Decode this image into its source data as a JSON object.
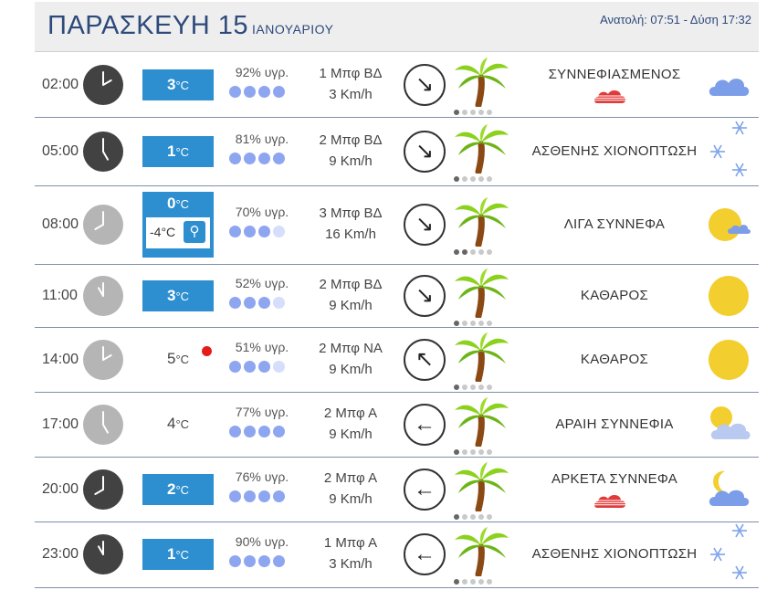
{
  "header": {
    "day_title": "ΠΑΡΑΣΚΕΥΗ 15",
    "month": "ΙΑΝΟΥΑΡΙΟΥ",
    "sun_times": "Ανατολή: 07:51  - Δύση 17:32"
  },
  "rows": [
    {
      "time": "02:00",
      "clock_style": "dark",
      "temp": "3",
      "temp_unit": "°C",
      "temp_style": "box",
      "humidity": "92% υγρ.",
      "humidity_level": 4,
      "wind_force": "1 Μπφ ΒΔ",
      "wind_speed": "3 Km/h",
      "wind_arrow": "↘",
      "palm_level": 1,
      "condition": "ΣΥΝΝΕΦΙΑΣΜΕΝΟΣ",
      "rain_icon": true,
      "weather_icon": "cloud-icon"
    },
    {
      "time": "05:00",
      "clock_style": "dark",
      "temp": "1",
      "temp_unit": "°C",
      "temp_style": "box",
      "humidity": "81% υγρ.",
      "humidity_level": 4,
      "wind_force": "2 Μπφ ΒΔ",
      "wind_speed": "9 Km/h",
      "wind_arrow": "↘",
      "palm_level": 1,
      "condition": "ΑΣΘΕΝΗΣ ΧΙΟΝΟΠΤΩΣΗ",
      "rain_icon": false,
      "weather_icon": "snowflakes-icon"
    },
    {
      "time": "08:00",
      "clock_style": "light",
      "temp": "0",
      "temp_unit": "°C",
      "temp_style": "tall",
      "feels_like": "-4°C",
      "humidity": "70% υγρ.",
      "humidity_level": 3,
      "wind_force": "3 Μπφ ΒΔ",
      "wind_speed": "16 Km/h",
      "wind_arrow": "↘",
      "palm_level": 2,
      "condition": "ΛΙΓΑ ΣΥΝΝΕΦΑ",
      "rain_icon": false,
      "weather_icon": "sun-small-cloud-icon"
    },
    {
      "time": "11:00",
      "clock_style": "light",
      "temp": "3",
      "temp_unit": "°C",
      "temp_style": "box",
      "humidity": "52% υγρ.",
      "humidity_level": 3,
      "wind_force": "2 Μπφ ΒΔ",
      "wind_speed": "9 Km/h",
      "wind_arrow": "↘",
      "palm_level": 1,
      "condition": "ΚΑΘΑΡΟΣ",
      "rain_icon": false,
      "weather_icon": "sun-icon"
    },
    {
      "time": "14:00",
      "clock_style": "light",
      "temp": "5",
      "temp_unit": "°C",
      "temp_style": "plain",
      "max_marker": true,
      "humidity": "51% υγρ.",
      "humidity_level": 3,
      "wind_force": "2 Μπφ ΝΑ",
      "wind_speed": "9 Km/h",
      "wind_arrow": "↖",
      "palm_level": 1,
      "condition": "ΚΑΘΑΡΟΣ",
      "rain_icon": false,
      "weather_icon": "sun-icon"
    },
    {
      "time": "17:00",
      "clock_style": "light",
      "temp": "4",
      "temp_unit": "°C",
      "temp_style": "plain",
      "humidity": "77% υγρ.",
      "humidity_level": 4,
      "wind_force": "2 Μπφ Α",
      "wind_speed": "9 Km/h",
      "wind_arrow": "←",
      "palm_level": 1,
      "condition": "ΑΡΑΙΗ ΣΥΝΝΕΦΙΑ",
      "rain_icon": false,
      "weather_icon": "sun-behind-cloud-icon"
    },
    {
      "time": "20:00",
      "clock_style": "dark",
      "temp": "2",
      "temp_unit": "°C",
      "temp_style": "box",
      "humidity": "76% υγρ.",
      "humidity_level": 4,
      "wind_force": "2 Μπφ Α",
      "wind_speed": "9 Km/h",
      "wind_arrow": "←",
      "palm_level": 1,
      "condition": "ΑΡΚΕΤΑ ΣΥΝΝΕΦΑ",
      "rain_icon": true,
      "weather_icon": "moon-cloud-icon"
    },
    {
      "time": "23:00",
      "clock_style": "dark",
      "temp": "1",
      "temp_unit": "°C",
      "temp_style": "box",
      "humidity": "90% υγρ.",
      "humidity_level": 4,
      "wind_force": "1 Μπφ Α",
      "wind_speed": "3 Km/h",
      "wind_arrow": "←",
      "palm_level": 1,
      "condition": "ΑΣΘΕΝΗΣ ΧΙΟΝΟΠΤΩΣΗ",
      "rain_icon": false,
      "weather_icon": "snowflakes-icon"
    }
  ],
  "colors": {
    "accent": "#2d8fd0",
    "title": "#2d4a7a",
    "humidity_dot": "#8ea5f0",
    "sun": "#f2ce2e",
    "cloud": "#7c9de8"
  }
}
